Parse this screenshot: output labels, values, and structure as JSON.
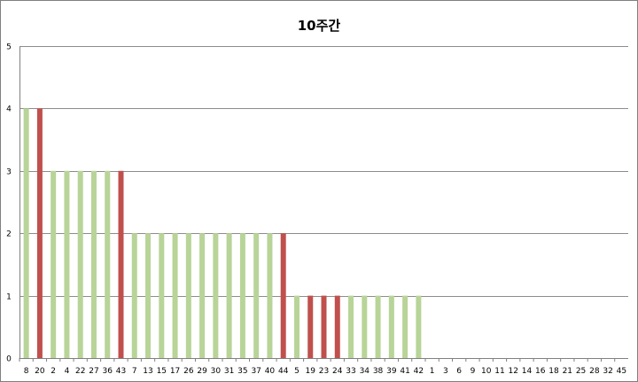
{
  "chart_data": {
    "type": "bar",
    "title": "10주간",
    "xlabel": "",
    "ylabel": "",
    "ylim": [
      0,
      5
    ],
    "yticks": [
      0,
      1,
      2,
      3,
      4,
      5
    ],
    "grid": true,
    "legend": "none",
    "colors": {
      "normal": "#B8D498",
      "highlight": "#C0504D",
      "grid": "#8C8C8C",
      "axis": "#808080"
    },
    "categories": [
      "8",
      "20",
      "2",
      "4",
      "22",
      "27",
      "36",
      "43",
      "7",
      "13",
      "15",
      "17",
      "26",
      "29",
      "30",
      "31",
      "35",
      "37",
      "40",
      "44",
      "5",
      "19",
      "23",
      "24",
      "33",
      "34",
      "38",
      "39",
      "41",
      "42",
      "1",
      "3",
      "6",
      "9",
      "10",
      "11",
      "12",
      "14",
      "16",
      "18",
      "21",
      "25",
      "28",
      "32",
      "45"
    ],
    "values": [
      4,
      4,
      3,
      3,
      3,
      3,
      3,
      3,
      2,
      2,
      2,
      2,
      2,
      2,
      2,
      2,
      2,
      2,
      2,
      2,
      1,
      1,
      1,
      1,
      1,
      1,
      1,
      1,
      1,
      1,
      0,
      0,
      0,
      0,
      0,
      0,
      0,
      0,
      0,
      0,
      0,
      0,
      0,
      0,
      0
    ],
    "highlighted": [
      "20",
      "43",
      "44",
      "19",
      "23",
      "24"
    ]
  }
}
